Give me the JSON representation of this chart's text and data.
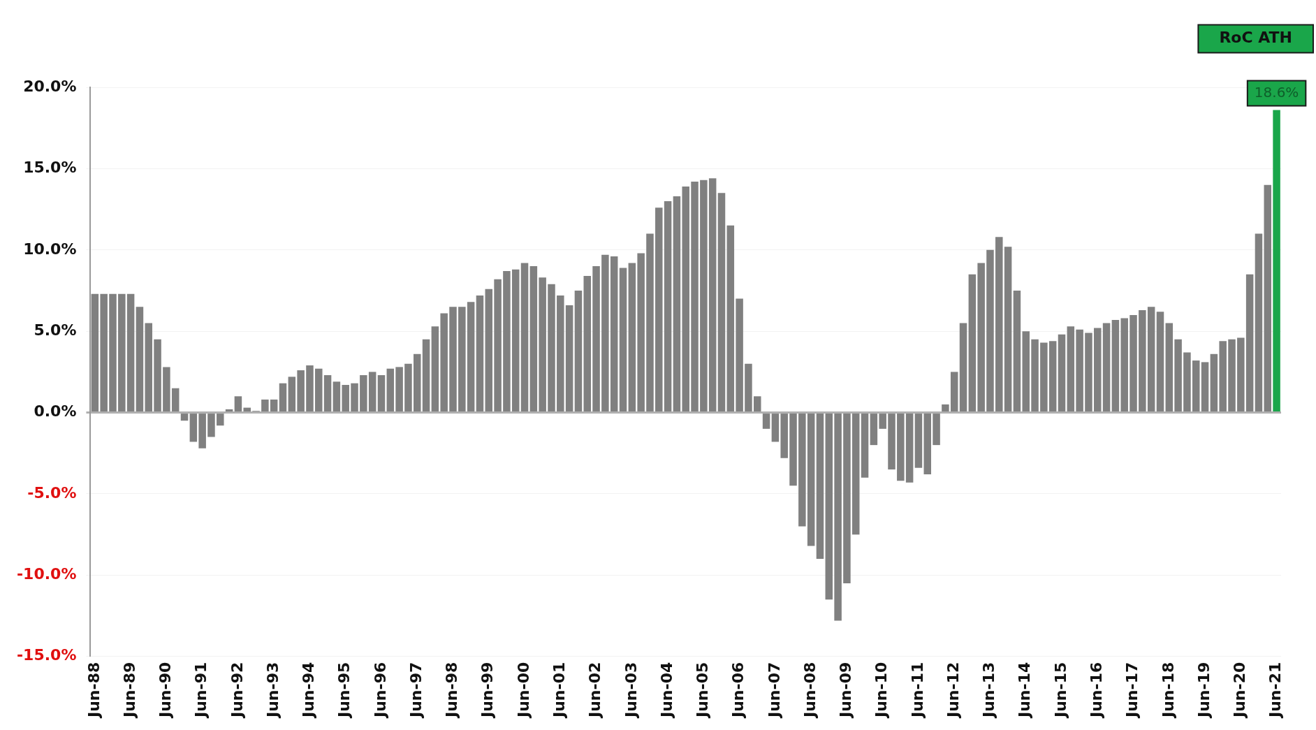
{
  "chart_data": {
    "type": "bar",
    "categories": [
      "Jun-88",
      null,
      null,
      null,
      "Jun-89",
      null,
      null,
      null,
      "Jun-90",
      null,
      null,
      null,
      "Jun-91",
      null,
      null,
      null,
      "Jun-92",
      null,
      null,
      null,
      "Jun-93",
      null,
      null,
      null,
      "Jun-94",
      null,
      null,
      null,
      "Jun-95",
      null,
      null,
      null,
      "Jun-96",
      null,
      null,
      null,
      "Jun-97",
      null,
      null,
      null,
      "Jun-98",
      null,
      null,
      null,
      "Jun-99",
      null,
      null,
      null,
      "Jun-00",
      null,
      null,
      null,
      "Jun-01",
      null,
      null,
      null,
      "Jun-02",
      null,
      null,
      null,
      "Jun-03",
      null,
      null,
      null,
      "Jun-04",
      null,
      null,
      null,
      "Jun-05",
      null,
      null,
      null,
      "Jun-06",
      null,
      null,
      null,
      "Jun-07",
      null,
      null,
      null,
      "Jun-08",
      null,
      null,
      null,
      "Jun-09",
      null,
      null,
      null,
      "Jun-10",
      null,
      null,
      null,
      "Jun-11",
      null,
      null,
      null,
      "Jun-12",
      null,
      null,
      null,
      "Jun-13",
      null,
      null,
      null,
      "Jun-14",
      null,
      null,
      null,
      "Jun-15",
      null,
      null,
      null,
      "Jun-16",
      null,
      null,
      null,
      "Jun-17",
      null,
      null,
      null,
      "Jun-18",
      null,
      null,
      null,
      "Jun-19",
      null,
      null,
      null,
      "Jun-20",
      null,
      null,
      null,
      "Jun-21"
    ],
    "values": [
      7.3,
      7.3,
      7.3,
      7.3,
      7.3,
      6.5,
      5.5,
      4.5,
      2.8,
      1.5,
      -0.5,
      -1.8,
      -2.2,
      -1.5,
      -0.8,
      0.2,
      1.0,
      0.3,
      0.1,
      0.8,
      0.8,
      1.8,
      2.2,
      2.6,
      2.9,
      2.7,
      2.3,
      1.9,
      1.7,
      1.8,
      2.3,
      2.5,
      2.3,
      2.7,
      2.8,
      3.0,
      3.6,
      4.5,
      5.3,
      6.1,
      6.5,
      6.5,
      6.8,
      7.2,
      7.6,
      8.2,
      8.7,
      8.8,
      9.2,
      9.0,
      8.3,
      7.9,
      7.2,
      6.6,
      7.5,
      8.4,
      9.0,
      9.7,
      9.6,
      8.9,
      9.2,
      9.8,
      11.0,
      12.6,
      13.0,
      13.3,
      13.9,
      14.2,
      14.3,
      14.4,
      13.5,
      11.5,
      7.0,
      3.0,
      1.0,
      -1.0,
      -1.8,
      -2.8,
      -4.5,
      -7.0,
      -8.2,
      -9.0,
      -11.5,
      -12.8,
      -10.5,
      -7.5,
      -4.0,
      -2.0,
      -1.0,
      -3.5,
      -4.2,
      -4.3,
      -3.4,
      -3.8,
      -2.0,
      0.5,
      2.5,
      5.5,
      8.5,
      9.2,
      10.0,
      10.8,
      10.2,
      7.5,
      5.0,
      4.5,
      4.3,
      4.4,
      4.8,
      5.3,
      5.1,
      4.9,
      5.2,
      5.5,
      5.7,
      5.8,
      6.0,
      6.3,
      6.5,
      6.2,
      5.5,
      4.5,
      3.7,
      3.2,
      3.1,
      3.6,
      4.4,
      4.5,
      4.6,
      8.5,
      11.0,
      14.0,
      18.6
    ],
    "colors": [
      "#808080",
      "#808080",
      "#808080",
      "#808080",
      "#808080",
      "#808080",
      "#808080",
      "#808080",
      "#808080",
      "#808080",
      "#808080",
      "#808080",
      "#808080",
      "#808080",
      "#808080",
      "#808080",
      "#808080",
      "#808080",
      "#808080",
      "#808080",
      "#808080",
      "#808080",
      "#808080",
      "#808080",
      "#808080",
      "#808080",
      "#808080",
      "#808080",
      "#808080",
      "#808080",
      "#808080",
      "#808080",
      "#808080",
      "#808080",
      "#808080",
      "#808080",
      "#808080",
      "#808080",
      "#808080",
      "#808080",
      "#808080",
      "#808080",
      "#808080",
      "#808080",
      "#808080",
      "#808080",
      "#808080",
      "#808080",
      "#808080",
      "#808080",
      "#808080",
      "#808080",
      "#808080",
      "#808080",
      "#808080",
      "#808080",
      "#808080",
      "#808080",
      "#808080",
      "#808080",
      "#808080",
      "#808080",
      "#808080",
      "#808080",
      "#808080",
      "#808080",
      "#808080",
      "#808080",
      "#808080",
      "#808080",
      "#808080",
      "#808080",
      "#808080",
      "#808080",
      "#808080",
      "#808080",
      "#808080",
      "#808080",
      "#808080",
      "#808080",
      "#808080",
      "#808080",
      "#808080",
      "#808080",
      "#808080",
      "#808080",
      "#808080",
      "#808080",
      "#808080",
      "#808080",
      "#808080",
      "#808080",
      "#808080",
      "#808080",
      "#808080",
      "#808080",
      "#808080",
      "#808080",
      "#808080",
      "#808080",
      "#808080",
      "#808080",
      "#808080",
      "#808080",
      "#808080",
      "#808080",
      "#808080",
      "#808080",
      "#808080",
      "#808080",
      "#808080",
      "#808080",
      "#808080",
      "#808080",
      "#808080",
      "#808080",
      "#808080",
      "#808080",
      "#808080",
      "#808080",
      "#808080",
      "#808080",
      "#808080",
      "#808080",
      "#808080",
      "#808080",
      "#808080",
      "#808080",
      "#808080",
      "#808080",
      "#808080",
      "#808080",
      "#1aa64a"
    ],
    "value_labels": [
      null,
      null,
      null,
      null,
      null,
      null,
      null,
      null,
      null,
      null,
      null,
      null,
      null,
      null,
      null,
      null,
      null,
      null,
      null,
      null,
      null,
      null,
      null,
      null,
      null,
      null,
      null,
      null,
      null,
      null,
      null,
      null,
      null,
      null,
      null,
      null,
      null,
      null,
      null,
      null,
      null,
      null,
      null,
      null,
      null,
      null,
      null,
      null,
      null,
      null,
      null,
      null,
      null,
      null,
      null,
      null,
      null,
      null,
      null,
      null,
      null,
      null,
      null,
      null,
      null,
      null,
      null,
      null,
      null,
      null,
      null,
      null,
      null,
      null,
      null,
      null,
      null,
      null,
      null,
      null,
      null,
      null,
      null,
      null,
      null,
      null,
      null,
      null,
      null,
      null,
      null,
      null,
      null,
      null,
      null,
      null,
      null,
      null,
      null,
      null,
      null,
      null,
      null,
      null,
      null,
      null,
      null,
      null,
      null,
      null,
      null,
      null,
      null,
      null,
      null,
      null,
      null,
      null,
      null,
      null,
      null,
      null,
      null,
      null,
      null,
      null,
      null,
      null,
      null,
      null,
      null,
      null,
      "18.6%"
    ],
    "annotations": [
      "RoC ATH"
    ],
    "ylim": [
      -15,
      20
    ],
    "yticks": [
      {
        "value": -15,
        "label": "-15.0%"
      },
      {
        "value": -10,
        "label": "-10.0%"
      },
      {
        "value": -5,
        "label": "-5.0%"
      },
      {
        "value": 0,
        "label": "0.0%"
      },
      {
        "value": 5,
        "label": "5.0%"
      },
      {
        "value": 10,
        "label": "10.0%"
      },
      {
        "value": 15,
        "label": "15.0%"
      },
      {
        "value": 20,
        "label": "20.0%"
      }
    ],
    "grid": "y",
    "legend": false
  }
}
